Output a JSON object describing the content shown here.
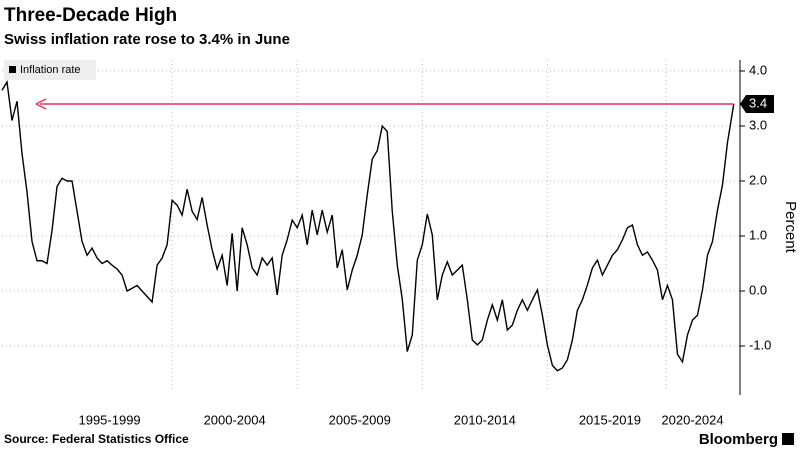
{
  "chart_data": {
    "type": "line",
    "title": "Three-Decade High",
    "subtitle": "Swiss inflation rate rose to 3.4% in June",
    "y_label": "Percent",
    "source": "Source: Federal Statistics Office",
    "brand": "Bloomberg",
    "legend": "top-left",
    "grid": true,
    "xlim": [
      1993.2,
      2022.7
    ],
    "ylim": [
      -1.8,
      4.2
    ],
    "xticks": [
      {
        "value": 1997.5,
        "label": "1995-1999"
      },
      {
        "value": 2002.5,
        "label": "2000-2004"
      },
      {
        "value": 2007.5,
        "label": "2005-2009"
      },
      {
        "value": 2012.5,
        "label": "2010-2014"
      },
      {
        "value": 2017.5,
        "label": "2015-2019"
      },
      {
        "value": 2022.0,
        "label": "2020-2024"
      }
    ],
    "yticks": [
      {
        "value": -1,
        "label": "-1.0"
      },
      {
        "value": 0,
        "label": "0.0"
      },
      {
        "value": 1,
        "label": "1.0"
      },
      {
        "value": 2,
        "label": "2.0"
      },
      {
        "value": 3,
        "label": "3.0"
      },
      {
        "value": 4,
        "label": "4.0"
      }
    ],
    "annotation": {
      "label": "3.4",
      "value": 3.4,
      "color": "#e0325a"
    },
    "x": [
      1993.2,
      1993.4,
      1993.6,
      1993.8,
      1994.0,
      1994.2,
      1994.4,
      1994.6,
      1994.8,
      1995.0,
      1995.2,
      1995.4,
      1995.6,
      1995.8,
      1996.0,
      1996.2,
      1996.4,
      1996.6,
      1996.8,
      1997.0,
      1997.2,
      1997.4,
      1997.6,
      1997.8,
      1998.0,
      1998.2,
      1998.4,
      1998.6,
      1998.8,
      1999.0,
      1999.2,
      1999.4,
      1999.6,
      1999.8,
      2000.0,
      2000.2,
      2000.4,
      2000.6,
      2000.8,
      2001.0,
      2001.2,
      2001.4,
      2001.6,
      2001.8,
      2002.0,
      2002.2,
      2002.4,
      2002.6,
      2002.8,
      2003.0,
      2003.2,
      2003.4,
      2003.6,
      2003.8,
      2004.0,
      2004.2,
      2004.4,
      2004.6,
      2004.8,
      2005.0,
      2005.2,
      2005.4,
      2005.6,
      2005.8,
      2006.0,
      2006.2,
      2006.4,
      2006.6,
      2006.8,
      2007.0,
      2007.2,
      2007.4,
      2007.6,
      2007.8,
      2008.0,
      2008.2,
      2008.4,
      2008.6,
      2008.8,
      2009.0,
      2009.2,
      2009.4,
      2009.6,
      2009.8,
      2010.0,
      2010.2,
      2010.4,
      2010.6,
      2010.8,
      2011.0,
      2011.2,
      2011.4,
      2011.6,
      2011.8,
      2012.0,
      2012.2,
      2012.4,
      2012.6,
      2012.8,
      2013.0,
      2013.2,
      2013.4,
      2013.6,
      2013.8,
      2014.0,
      2014.2,
      2014.4,
      2014.6,
      2014.8,
      2015.0,
      2015.2,
      2015.4,
      2015.6,
      2015.8,
      2016.0,
      2016.2,
      2016.4,
      2016.6,
      2016.8,
      2017.0,
      2017.2,
      2017.4,
      2017.6,
      2017.8,
      2018.0,
      2018.2,
      2018.4,
      2018.6,
      2018.8,
      2019.0,
      2019.2,
      2019.4,
      2019.6,
      2019.8,
      2020.0,
      2020.2,
      2020.4,
      2020.6,
      2020.8,
      2021.0,
      2021.2,
      2021.4,
      2021.6,
      2021.8,
      2022.0,
      2022.2,
      2022.45
    ],
    "series": [
      {
        "name": "Inflation rate",
        "color": "#000000",
        "values": [
          3.65,
          3.8,
          3.1,
          3.45,
          2.5,
          1.8,
          0.9,
          0.55,
          0.55,
          0.5,
          1.1,
          1.9,
          2.05,
          2.0,
          2.0,
          1.45,
          0.9,
          0.65,
          0.78,
          0.6,
          0.5,
          0.55,
          0.47,
          0.4,
          0.29,
          0.0,
          0.05,
          0.1,
          0.0,
          -0.1,
          -0.2,
          0.47,
          0.6,
          0.84,
          1.65,
          1.56,
          1.38,
          1.85,
          1.45,
          1.3,
          1.7,
          1.2,
          0.75,
          0.4,
          0.65,
          0.1,
          1.05,
          0.0,
          1.15,
          0.84,
          0.42,
          0.29,
          0.6,
          0.47,
          0.6,
          -0.07,
          0.65,
          0.93,
          1.29,
          1.15,
          1.38,
          0.84,
          1.47,
          1.02,
          1.47,
          1.07,
          1.38,
          0.42,
          0.75,
          0.02,
          0.38,
          0.65,
          1.02,
          1.75,
          2.4,
          2.55,
          3.0,
          2.9,
          1.45,
          0.47,
          -0.15,
          -1.1,
          -0.8,
          0.56,
          0.84,
          1.4,
          1.02,
          -0.16,
          0.29,
          0.53,
          0.29,
          0.38,
          0.47,
          -0.16,
          -0.89,
          -0.98,
          -0.89,
          -0.53,
          -0.25,
          -0.53,
          -0.16,
          -0.71,
          -0.62,
          -0.35,
          -0.16,
          -0.35,
          -0.16,
          0.02,
          -0.44,
          -0.98,
          -1.35,
          -1.45,
          -1.4,
          -1.25,
          -0.89,
          -0.35,
          -0.16,
          0.11,
          0.42,
          0.56,
          0.29,
          0.47,
          0.65,
          0.75,
          0.93,
          1.15,
          1.2,
          0.84,
          0.65,
          0.71,
          0.56,
          0.38,
          -0.16,
          0.1,
          -0.16,
          -1.15,
          -1.29,
          -0.8,
          -0.53,
          -0.44,
          0.02,
          0.65,
          0.9,
          1.47,
          1.93,
          2.7,
          3.4
        ]
      }
    ]
  }
}
